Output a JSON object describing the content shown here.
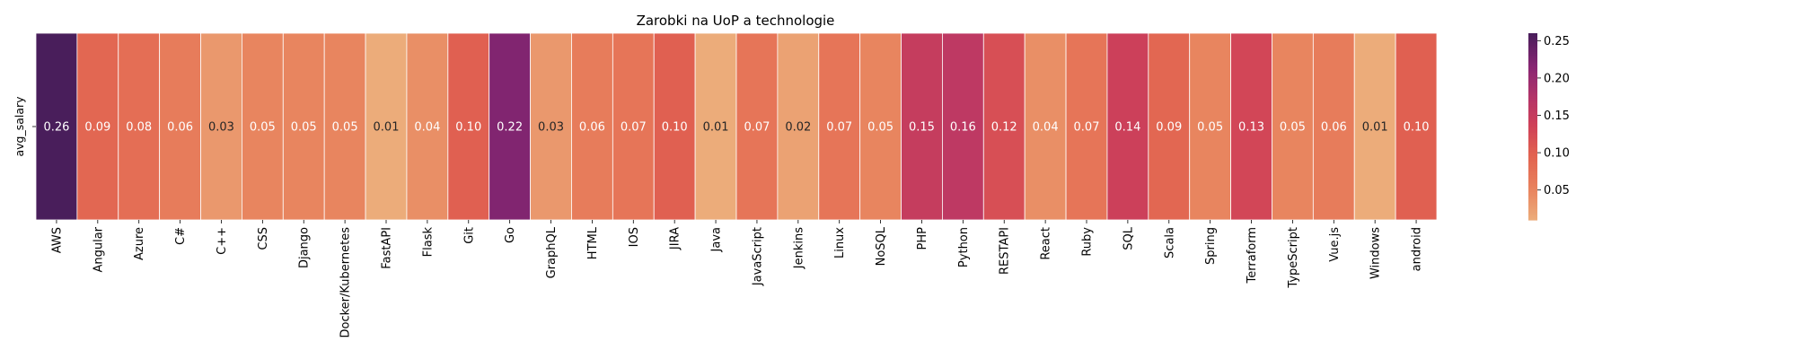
{
  "chart_data": {
    "type": "heatmap",
    "title": "Zarobki na UoP a technologie",
    "ylabel": "avg_salary",
    "rows": [
      "avg_salary"
    ],
    "categories": [
      "AWS",
      "Angular",
      "Azure",
      "C#",
      "C++",
      "CSS",
      "Django",
      "Docker/Kubernetes",
      "FastAPI",
      "Flask",
      "Git",
      "Go",
      "GraphQL",
      "HTML",
      "IOS",
      "JIRA",
      "Java",
      "JavaScript",
      "Jenkins",
      "Linux",
      "NoSQL",
      "PHP",
      "Python",
      "RESTAPI",
      "React",
      "Ruby",
      "SQL",
      "Scala",
      "Spring",
      "Terraform",
      "TypeScript",
      "Vue.js",
      "Windows",
      "android"
    ],
    "values": [
      0.26,
      0.09,
      0.08,
      0.06,
      0.03,
      0.05,
      0.05,
      0.05,
      0.01,
      0.04,
      0.1,
      0.22,
      0.03,
      0.06,
      0.07,
      0.1,
      0.01,
      0.07,
      0.02,
      0.07,
      0.05,
      0.15,
      0.16,
      0.12,
      0.04,
      0.07,
      0.14,
      0.09,
      0.05,
      0.13,
      0.05,
      0.06,
      0.01,
      0.1
    ],
    "colorbar": {
      "ticks": [
        0.05,
        0.1,
        0.15,
        0.2,
        0.25
      ],
      "vmin": 0.01,
      "vmax": 0.26,
      "colormap": "flare"
    },
    "grid": false,
    "legend": "colorbar-right"
  }
}
